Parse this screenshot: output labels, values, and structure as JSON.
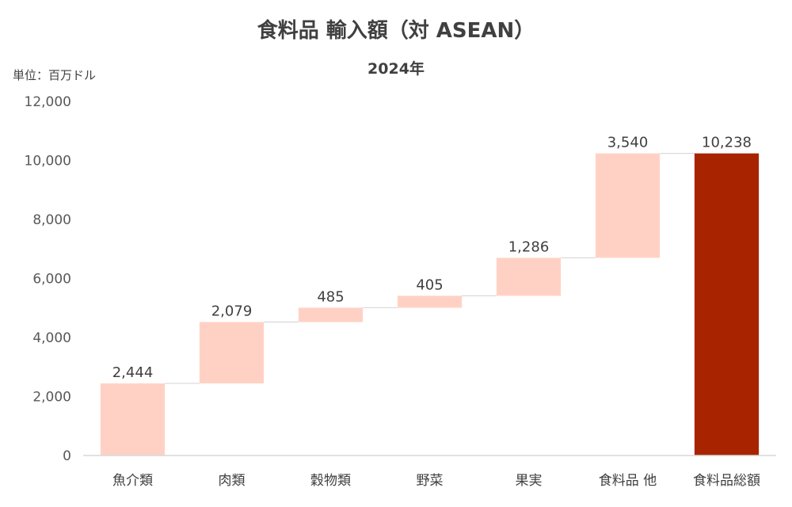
{
  "chart_data": {
    "type": "bar",
    "subtype": "waterfall",
    "title": "食料品 輸入額（対 ASEAN）",
    "subtitle": "2024年",
    "unit_label": "単位：百万ドル",
    "categories": [
      "魚介類",
      "肉類",
      "穀物類",
      "野菜",
      "果実",
      "食料品 他",
      "食料品総額"
    ],
    "values": [
      2444,
      2079,
      485,
      405,
      1286,
      3540,
      10238
    ],
    "data_labels": [
      "2,444",
      "2,079",
      "485",
      "405",
      "1,286",
      "3,540",
      "10,238"
    ],
    "is_total": [
      false,
      false,
      false,
      false,
      false,
      false,
      true
    ],
    "ylim": [
      0,
      12000
    ],
    "yticks": [
      0,
      2000,
      4000,
      6000,
      8000,
      10000,
      12000
    ],
    "ytick_labels": [
      "0",
      "2,000",
      "4,000",
      "6,000",
      "8,000",
      "10,000",
      "12,000"
    ],
    "grid": false,
    "legend": "none",
    "colors": {
      "increment": "#FFD1C5",
      "total": "#A82400",
      "connector": "#D9D9D9",
      "axis": "#D9D9D9"
    }
  }
}
